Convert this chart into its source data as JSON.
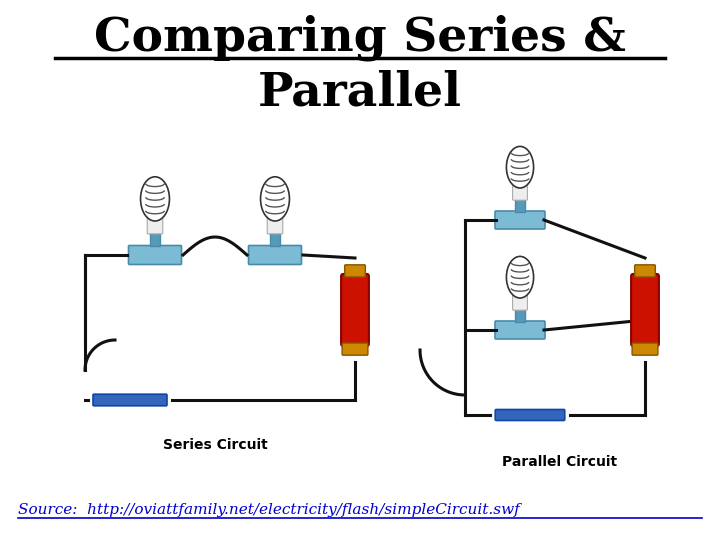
{
  "title_line1": "Comparing Series &",
  "title_line2": "Parallel",
  "title_fontsize": 34,
  "title_color": "#000000",
  "label_series": "Series Circuit",
  "label_parallel": "Parallel Circuit",
  "label_fontsize": 10,
  "source_text": "Source:  http://oviattfamily.net/electricity/flash/simpleCircuit.swf",
  "source_color": "#0000CC",
  "source_fontsize": 11,
  "bg_color": "#FFFFFF",
  "wire_color": "#111111",
  "wire_lw": 2.2,
  "lamp_base_color": "#7bbbd4",
  "lamp_base_edge": "#4a8aaa",
  "lamp_post_color": "#5599bb",
  "battery_body_color": "#cc1100",
  "battery_cap_color": "#cc8800",
  "switch_color": "#3366bb",
  "switch_edge": "#1144aa"
}
